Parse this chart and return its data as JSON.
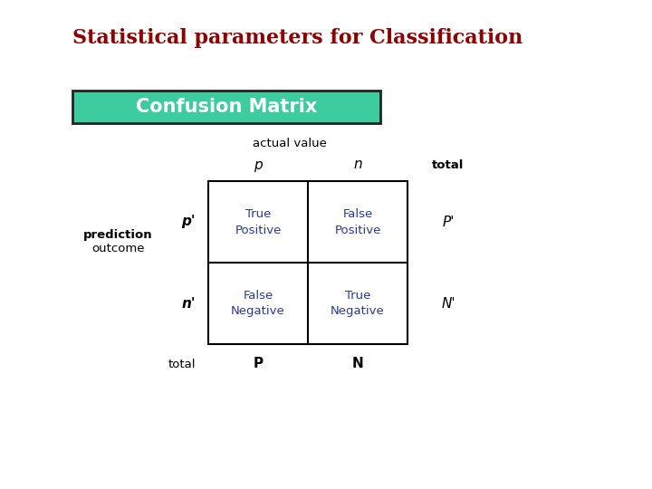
{
  "title": "Statistical parameters for Classification",
  "title_color": "#8b0000",
  "title_fontsize": 16,
  "subtitle": "Confusion Matrix",
  "subtitle_bg": "#3dcba0",
  "subtitle_text_color": "#ffffff",
  "subtitle_fontsize": 15,
  "bg_color": "#ffffff",
  "cell_border_color": "#000000",
  "cell_text_color": "#2b3a8f",
  "label_color": "#000000",
  "actual_value_label": "actual value",
  "p_label": "p",
  "n_label": "n",
  "total_label_top": "total",
  "pp_label": "p'",
  "np_label": "n'",
  "prediction_label1": "prediction",
  "prediction_label2": "outcome",
  "total_label_left": "total",
  "P_label": "P",
  "N_label": "N",
  "Pp_label": "P'",
  "Np_label": "N'",
  "cell_TL": [
    "True",
    "Positive"
  ],
  "cell_TR": [
    "False",
    "Positive"
  ],
  "cell_BL": [
    "False",
    "Negative"
  ],
  "cell_BR": [
    "True",
    "Negative"
  ]
}
